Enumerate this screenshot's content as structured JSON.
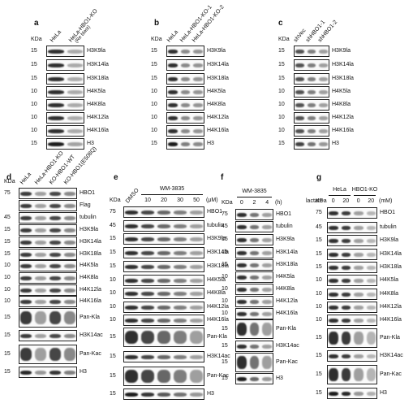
{
  "panels": [
    {
      "letter": "a",
      "kda_header": "KDa",
      "lanes": [
        "HeLa",
        "HeLa-HBO1-KO"
      ],
      "note": "(Re blast)",
      "rows": [
        {
          "kda": 15,
          "label": "H3K9la"
        },
        {
          "kda": 15,
          "label": "H3K14la"
        },
        {
          "kda": 15,
          "label": "H3K18la"
        },
        {
          "kda": 10,
          "label": "H4K5la"
        },
        {
          "kda": 10,
          "label": "H4K8la"
        },
        {
          "kda": 10,
          "label": "H4K12la"
        },
        {
          "kda": 10,
          "label": "H4K16la"
        },
        {
          "kda": 15,
          "label": "H3"
        }
      ]
    },
    {
      "letter": "b",
      "kda_header": "KDa",
      "lanes": [
        "HeLa",
        "HeLa-HBO1-KO-1",
        "HeLa-HBO1-KO-2"
      ],
      "rows": [
        {
          "kda": 15,
          "label": "H3K9la"
        },
        {
          "kda": 15,
          "label": "H3K14la"
        },
        {
          "kda": 15,
          "label": "H3K18la"
        },
        {
          "kda": 10,
          "label": "H4K5la"
        },
        {
          "kda": 10,
          "label": "H4K8la"
        },
        {
          "kda": 10,
          "label": "H4K12la"
        },
        {
          "kda": 10,
          "label": "H4K16la"
        },
        {
          "kda": 15,
          "label": "H3"
        }
      ]
    },
    {
      "letter": "c",
      "kda_header": "KDa",
      "lanes": [
        "shVec",
        "shHBO1-1",
        "shHBO1-2"
      ],
      "rows": [
        {
          "kda": 15,
          "label": "H3K9la"
        },
        {
          "kda": 15,
          "label": "H3K14la"
        },
        {
          "kda": 15,
          "label": "H3K18la"
        },
        {
          "kda": 10,
          "label": "H4K5la"
        },
        {
          "kda": 10,
          "label": "H4K8la"
        },
        {
          "kda": 10,
          "label": "H4K12la"
        },
        {
          "kda": 10,
          "label": "H4K16la"
        },
        {
          "kda": 15,
          "label": "H3"
        }
      ]
    },
    {
      "letter": "d",
      "kda_header": "KDa",
      "lanes": [
        "HeLa",
        "HeLa-HBO1-KO",
        "KO-HBO1-WT",
        "KO-HBO1(E508Q)"
      ],
      "rows": [
        {
          "kda": 75,
          "label": "HBO1"
        },
        {
          "kda": null,
          "label": "Flag"
        },
        {
          "kda": 45,
          "label": "tubulin"
        },
        {
          "kda": 15,
          "label": "H3K9la"
        },
        {
          "kda": 15,
          "label": "H3K14la"
        },
        {
          "kda": 15,
          "label": "H3K18la"
        },
        {
          "kda": 10,
          "label": "H4K5la"
        },
        {
          "kda": 10,
          "label": "H4K8la"
        },
        {
          "kda": 10,
          "label": "H4K12la"
        },
        {
          "kda": 10,
          "label": "H4K16la"
        },
        {
          "kda": 15,
          "label": "Pan-Kla"
        },
        {
          "kda": 15,
          "label": "H3K14ac"
        },
        {
          "kda": 15,
          "label": "Pan-Kac"
        },
        {
          "kda": 15,
          "label": "H3"
        }
      ]
    },
    {
      "letter": "e",
      "kda_header": "KDa",
      "group": "WM-3835",
      "lanes": [
        "DMSO",
        10,
        20,
        30,
        50
      ],
      "unit": "(μM)",
      "rows": [
        {
          "kda": 75,
          "label": "HBO1"
        },
        {
          "kda": 45,
          "label": "tubulin"
        },
        {
          "kda": 15,
          "label": "H3K9la"
        },
        {
          "kda": 15,
          "label": "H3K14la"
        },
        {
          "kda": 15,
          "label": "H3K18la"
        },
        {
          "kda": 10,
          "label": "H4K5la"
        },
        {
          "kda": 10,
          "label": "H4K8la"
        },
        {
          "kda": 10,
          "label": "H4K12la"
        },
        {
          "kda": 10,
          "label": "H4K16la"
        },
        {
          "kda": 15,
          "label": "Pan-Kla"
        },
        {
          "kda": 15,
          "label": "H3K14ac"
        },
        {
          "kda": 15,
          "label": "Pan-Kac"
        },
        {
          "kda": 15,
          "label": "H3"
        }
      ]
    },
    {
      "letter": "f",
      "kda_header": "KDa",
      "group": "WM-3835",
      "lanes": [
        0,
        2,
        4
      ],
      "unit": "(h)",
      "rows": [
        {
          "kda": 75,
          "label": "HBO1"
        },
        {
          "kda": 45,
          "label": "tubulin"
        },
        {
          "kda": 15,
          "label": "H3K9la"
        },
        {
          "kda": 15,
          "label": "H3K14la"
        },
        {
          "kda": 15,
          "label": "H3K18la"
        },
        {
          "kda": 10,
          "label": "H4K5la"
        },
        {
          "kda": 10,
          "label": "H4K8la"
        },
        {
          "kda": 10,
          "label": "H4K12la"
        },
        {
          "kda": 10,
          "label": "H4K16la"
        },
        {
          "kda": 15,
          "label": "Pan-Kla"
        },
        {
          "kda": 15,
          "label": "H3K14ac"
        },
        {
          "kda": 15,
          "label": "Pan-Kac"
        },
        {
          "kda": 15,
          "label": "H3"
        }
      ]
    },
    {
      "letter": "g",
      "kda_header": "KDa",
      "groups": [
        "HeLa",
        "HBO1-KO"
      ],
      "row_label": "lactate",
      "lanes": [
        0,
        20,
        0,
        20
      ],
      "unit": "(mM)",
      "rows": [
        {
          "kda": 75,
          "label": "HBO1"
        },
        {
          "kda": 45,
          "label": "tubulin"
        },
        {
          "kda": 15,
          "label": "H3K9la"
        },
        {
          "kda": 15,
          "label": "H3K14la"
        },
        {
          "kda": 15,
          "label": "H3K18la"
        },
        {
          "kda": 10,
          "label": "H4K5la"
        },
        {
          "kda": 10,
          "label": "H4K8la"
        },
        {
          "kda": 10,
          "label": "H4K12la"
        },
        {
          "kda": 10,
          "label": "H4K16la"
        },
        {
          "kda": 15,
          "label": "Pan-Kla"
        },
        {
          "kda": 15,
          "label": "H3K14ac"
        },
        {
          "kda": 15,
          "label": "Pan-Kac"
        },
        {
          "kda": 15,
          "label": "H3"
        }
      ]
    }
  ]
}
